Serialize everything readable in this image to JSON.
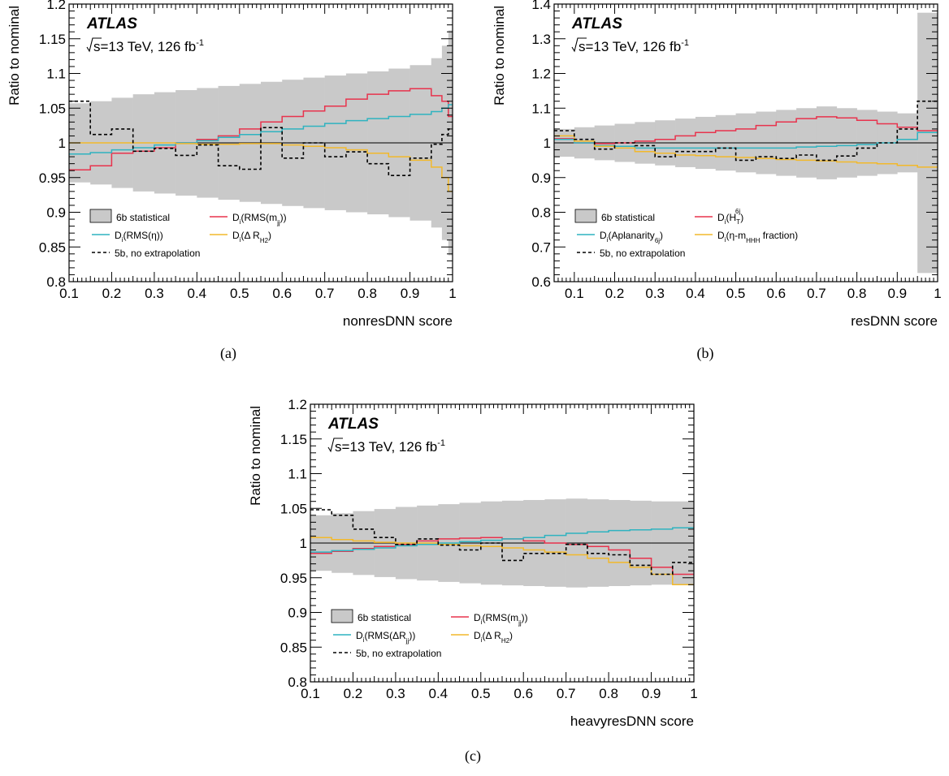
{
  "chart_data": [
    {
      "type": "line",
      "panel_caption": "(a)",
      "xlabel": "nonresDNN score",
      "ylabel": "Ratio to nominal",
      "xlim": [
        0.1,
        1.0
      ],
      "ylim": [
        0.8,
        1.2
      ],
      "xticks": [
        "0.1",
        "0.2",
        "0.3",
        "0.4",
        "0.5",
        "0.6",
        "0.7",
        "0.8",
        "0.9",
        "1"
      ],
      "yticks": [
        "0.8",
        "0.85",
        "0.9",
        "0.95",
        "1",
        "1.05",
        "1.1",
        "1.15",
        "1.2"
      ],
      "experiment": "ATLAS",
      "energy_lumi": {
        "sqrt": "s",
        "rest": "=13 TeV, 126 fb",
        "sup": "-1"
      },
      "reference_line": 1,
      "bin_edges": [
        0.1,
        0.15,
        0.2,
        0.25,
        0.3,
        0.35,
        0.4,
        0.45,
        0.5,
        0.55,
        0.6,
        0.65,
        0.7,
        0.75,
        0.8,
        0.85,
        0.9,
        0.95,
        0.975,
        0.99,
        1.0
      ],
      "band": {
        "legend": "6b statistical",
        "low": [
          0.943,
          0.94,
          0.935,
          0.93,
          0.927,
          0.924,
          0.921,
          0.918,
          0.915,
          0.912,
          0.909,
          0.906,
          0.903,
          0.9,
          0.897,
          0.893,
          0.888,
          0.878,
          0.86,
          0.838
        ],
        "high": [
          1.057,
          1.06,
          1.065,
          1.07,
          1.073,
          1.076,
          1.079,
          1.082,
          1.085,
          1.088,
          1.091,
          1.094,
          1.097,
          1.1,
          1.103,
          1.107,
          1.112,
          1.122,
          1.14,
          1.162
        ]
      },
      "series": [
        {
          "legend": {
            "main": "D",
            "sub1": "i",
            "mid": "(RMS(m",
            "sub2": "jj",
            "tail": "))"
          },
          "color": "#e8334d",
          "dashed": false,
          "values": [
            0.961,
            0.967,
            0.985,
            0.988,
            0.993,
            1.0,
            1.005,
            1.01,
            1.02,
            1.03,
            1.038,
            1.046,
            1.053,
            1.063,
            1.07,
            1.075,
            1.078,
            1.068,
            1.06,
            1.038
          ]
        },
        {
          "legend": {
            "main": "D",
            "sub1": "i",
            "mid": "(RMS(η))",
            "sub2": "",
            "tail": ""
          },
          "color": "#2fb3c0",
          "dashed": false,
          "values": [
            0.984,
            0.986,
            0.99,
            0.993,
            0.997,
            1.0,
            1.003,
            1.008,
            1.012,
            1.016,
            1.02,
            1.024,
            1.028,
            1.032,
            1.035,
            1.038,
            1.041,
            1.045,
            1.05,
            1.055
          ]
        },
        {
          "legend": {
            "main": "D",
            "sub1": "i",
            "mid": "(Δ R",
            "sub2": "H2",
            "tail": ")"
          },
          "color": "#f2b92b",
          "dashed": false,
          "values": [
            1.0,
            1.0,
            1.0,
            1.0,
            1.0,
            0.999,
            0.998,
            0.998,
            0.999,
            0.999,
            0.997,
            0.995,
            0.993,
            0.99,
            0.985,
            0.98,
            0.975,
            0.965,
            0.95,
            0.93
          ]
        },
        {
          "legend": {
            "main": "5b, no extrapolation",
            "sub1": "",
            "mid": "",
            "sub2": "",
            "tail": ""
          },
          "color": "#000000",
          "dashed": true,
          "values": [
            1.06,
            1.012,
            1.02,
            0.988,
            0.992,
            0.982,
            0.997,
            0.967,
            0.962,
            1.022,
            0.978,
            1.0,
            0.98,
            0.987,
            0.97,
            0.953,
            0.978,
            0.998,
            1.012,
            1.02
          ]
        }
      ]
    },
    {
      "type": "line",
      "panel_caption": "(b)",
      "xlabel": "resDNN score",
      "ylabel": "Ratio to nominal",
      "xlim": [
        0.05,
        1.0
      ],
      "ylim": [
        0.6,
        1.4
      ],
      "xticks": [
        "0.1",
        "0.2",
        "0.3",
        "0.4",
        "0.5",
        "0.6",
        "0.7",
        "0.8",
        "0.9",
        "1"
      ],
      "yticks": [
        "0.6",
        "0.7",
        "0.8",
        "0.9",
        "1",
        "1.1",
        "1.2",
        "1.3",
        "1.4"
      ],
      "experiment": "ATLAS",
      "energy_lumi": {
        "sqrt": "s",
        "rest": "=13 TeV, 126 fb",
        "sup": "-1"
      },
      "reference_line": 1,
      "bin_edges": [
        0.05,
        0.1,
        0.15,
        0.2,
        0.25,
        0.3,
        0.35,
        0.4,
        0.45,
        0.5,
        0.55,
        0.6,
        0.65,
        0.7,
        0.75,
        0.8,
        0.85,
        0.9,
        0.95,
        1.0
      ],
      "band": {
        "legend": "6b statistical",
        "low": [
          0.96,
          0.955,
          0.95,
          0.945,
          0.94,
          0.935,
          0.93,
          0.925,
          0.92,
          0.915,
          0.91,
          0.905,
          0.9,
          0.895,
          0.9,
          0.905,
          0.91,
          0.915,
          0.625
        ],
        "high": [
          1.04,
          1.045,
          1.05,
          1.055,
          1.06,
          1.065,
          1.07,
          1.075,
          1.08,
          1.085,
          1.09,
          1.095,
          1.1,
          1.105,
          1.1,
          1.095,
          1.09,
          1.085,
          1.375
        ]
      },
      "series": [
        {
          "legend": {
            "main": "D",
            "sub1": "i",
            "mid": "(H",
            "sub2": "T",
            "sup": "6j",
            "tail": ")"
          },
          "color": "#e8334d",
          "dashed": false,
          "values": [
            1.012,
            1.0,
            0.998,
            1.0,
            1.005,
            1.01,
            1.02,
            1.03,
            1.035,
            1.04,
            1.05,
            1.06,
            1.07,
            1.075,
            1.072,
            1.065,
            1.055,
            1.045,
            1.035
          ]
        },
        {
          "legend": {
            "main": "D",
            "sub1": "i",
            "mid": "(Aplanarity",
            "sub2": "6j",
            "tail": ")"
          },
          "color": "#2fb3c0",
          "dashed": false,
          "values": [
            1.01,
            1.0,
            0.992,
            0.99,
            0.985,
            0.985,
            0.985,
            0.985,
            0.985,
            0.985,
            0.985,
            0.985,
            0.988,
            0.99,
            0.992,
            0.995,
            1.0,
            1.01,
            1.03
          ]
        },
        {
          "legend": {
            "main": "D",
            "sub1": "i",
            "mid": "(η-m",
            "sub2": "HHH",
            "tail": " fraction)"
          },
          "color": "#f2b92b",
          "dashed": false,
          "values": [
            1.02,
            1.005,
            0.99,
            0.985,
            0.975,
            0.97,
            0.965,
            0.963,
            0.96,
            0.958,
            0.955,
            0.952,
            0.95,
            0.948,
            0.945,
            0.942,
            0.94,
            0.935,
            0.93
          ]
        },
        {
          "legend": {
            "main": "5b, no extrapolation",
            "sub1": "",
            "mid": "",
            "sub2": "",
            "tail": ""
          },
          "color": "#000000",
          "dashed": true,
          "values": [
            1.035,
            1.01,
            0.982,
            1.0,
            0.992,
            0.96,
            0.975,
            0.975,
            0.985,
            0.95,
            0.96,
            0.955,
            0.965,
            0.95,
            0.962,
            0.985,
            1.0,
            1.04,
            1.12
          ]
        }
      ]
    },
    {
      "type": "line",
      "panel_caption": "(c)",
      "xlabel": "heavyresDNN score",
      "ylabel": "Ratio to nominal",
      "xlim": [
        0.1,
        1.0
      ],
      "ylim": [
        0.8,
        1.2
      ],
      "xticks": [
        "0.1",
        "0.2",
        "0.3",
        "0.4",
        "0.5",
        "0.6",
        "0.7",
        "0.8",
        "0.9",
        "1"
      ],
      "yticks": [
        "0.8",
        "0.85",
        "0.9",
        "0.95",
        "1",
        "1.05",
        "1.1",
        "1.15",
        "1.2"
      ],
      "experiment": "ATLAS",
      "energy_lumi": {
        "sqrt": "s",
        "rest": "=13 TeV, 126 fb",
        "sup": "-1"
      },
      "reference_line": 1,
      "bin_edges": [
        0.1,
        0.15,
        0.2,
        0.25,
        0.3,
        0.35,
        0.4,
        0.45,
        0.5,
        0.55,
        0.6,
        0.65,
        0.7,
        0.75,
        0.8,
        0.85,
        0.9,
        0.95,
        1.0
      ],
      "band": {
        "legend": "6b statistical",
        "low": [
          0.96,
          0.957,
          0.954,
          0.951,
          0.948,
          0.946,
          0.944,
          0.942,
          0.94,
          0.939,
          0.938,
          0.937,
          0.936,
          0.937,
          0.938,
          0.939,
          0.94,
          0.94
        ],
        "high": [
          1.04,
          1.043,
          1.046,
          1.049,
          1.052,
          1.054,
          1.056,
          1.058,
          1.06,
          1.061,
          1.062,
          1.063,
          1.064,
          1.063,
          1.062,
          1.061,
          1.06,
          1.06
        ]
      },
      "series": [
        {
          "legend": {
            "main": "D",
            "sub1": "i",
            "mid": "(RMS(m",
            "sub2": "jj",
            "tail": "))"
          },
          "color": "#e8334d",
          "dashed": false,
          "values": [
            0.985,
            0.988,
            0.992,
            0.995,
            0.998,
            1.003,
            1.006,
            1.007,
            1.008,
            1.006,
            1.003,
            1.0,
            0.998,
            0.995,
            0.99,
            0.978,
            0.965,
            0.955
          ]
        },
        {
          "legend": {
            "main": "D",
            "sub1": "i",
            "mid": "(RMS(ΔR",
            "sub2": "jj",
            "tail": "))"
          },
          "color": "#2fb3c0",
          "dashed": false,
          "values": [
            0.987,
            0.989,
            0.991,
            0.993,
            0.996,
            0.998,
            1.0,
            1.002,
            1.004,
            1.006,
            1.008,
            1.011,
            1.014,
            1.016,
            1.018,
            1.019,
            1.02,
            1.022
          ]
        },
        {
          "legend": {
            "main": "D",
            "sub1": "i",
            "mid": "(Δ R",
            "sub2": "H2",
            "tail": ")"
          },
          "color": "#f2b92b",
          "dashed": false,
          "values": [
            1.008,
            1.005,
            1.003,
            1.001,
            1.0,
            1.0,
            0.998,
            0.996,
            0.995,
            0.993,
            0.99,
            0.987,
            0.983,
            0.978,
            0.972,
            0.965,
            0.955,
            0.94
          ]
        },
        {
          "legend": {
            "main": "5b, no extrapolation",
            "sub1": "",
            "mid": "",
            "sub2": "",
            "tail": ""
          },
          "color": "#000000",
          "dashed": true,
          "values": [
            1.048,
            1.04,
            1.02,
            1.008,
            0.998,
            1.006,
            0.997,
            0.99,
            1.0,
            0.975,
            0.985,
            0.985,
            0.998,
            0.985,
            0.983,
            0.968,
            0.955,
            0.972
          ]
        }
      ]
    }
  ]
}
